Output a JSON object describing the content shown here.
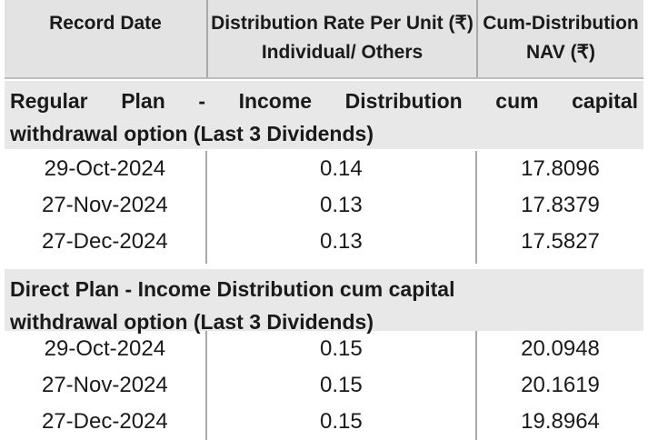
{
  "headers": {
    "record_date": "Record Date",
    "rate_line1": "Distribution Rate Per Unit  (₹)",
    "rate_line2": "Individual/ Others",
    "nav_line1": "Cum-Distribution",
    "nav_line2": "NAV (₹)"
  },
  "sections": [
    {
      "title_line1": "Regular Plan - Income Distribution cum capital",
      "title_line2": "withdrawal option (Last 3 Dividends)",
      "rows": [
        {
          "date": "29-Oct-2024",
          "rate": "0.14",
          "nav": "17.8096"
        },
        {
          "date": "27-Nov-2024",
          "rate": "0.13",
          "nav": "17.8379"
        },
        {
          "date": "27-Dec-2024",
          "rate": "0.13",
          "nav": "17.5827"
        }
      ]
    },
    {
      "title_line1": "Direct Plan - Income Distribution cum capital",
      "title_line2": "withdrawal option (Last 3 Dividends)",
      "rows": [
        {
          "date": "29-Oct-2024",
          "rate": "0.15",
          "nav": "20.0948"
        },
        {
          "date": "27-Nov-2024",
          "rate": "0.15",
          "nav": "20.1619"
        },
        {
          "date": "27-Dec-2024",
          "rate": "0.15",
          "nav": "19.8964"
        }
      ]
    }
  ]
}
